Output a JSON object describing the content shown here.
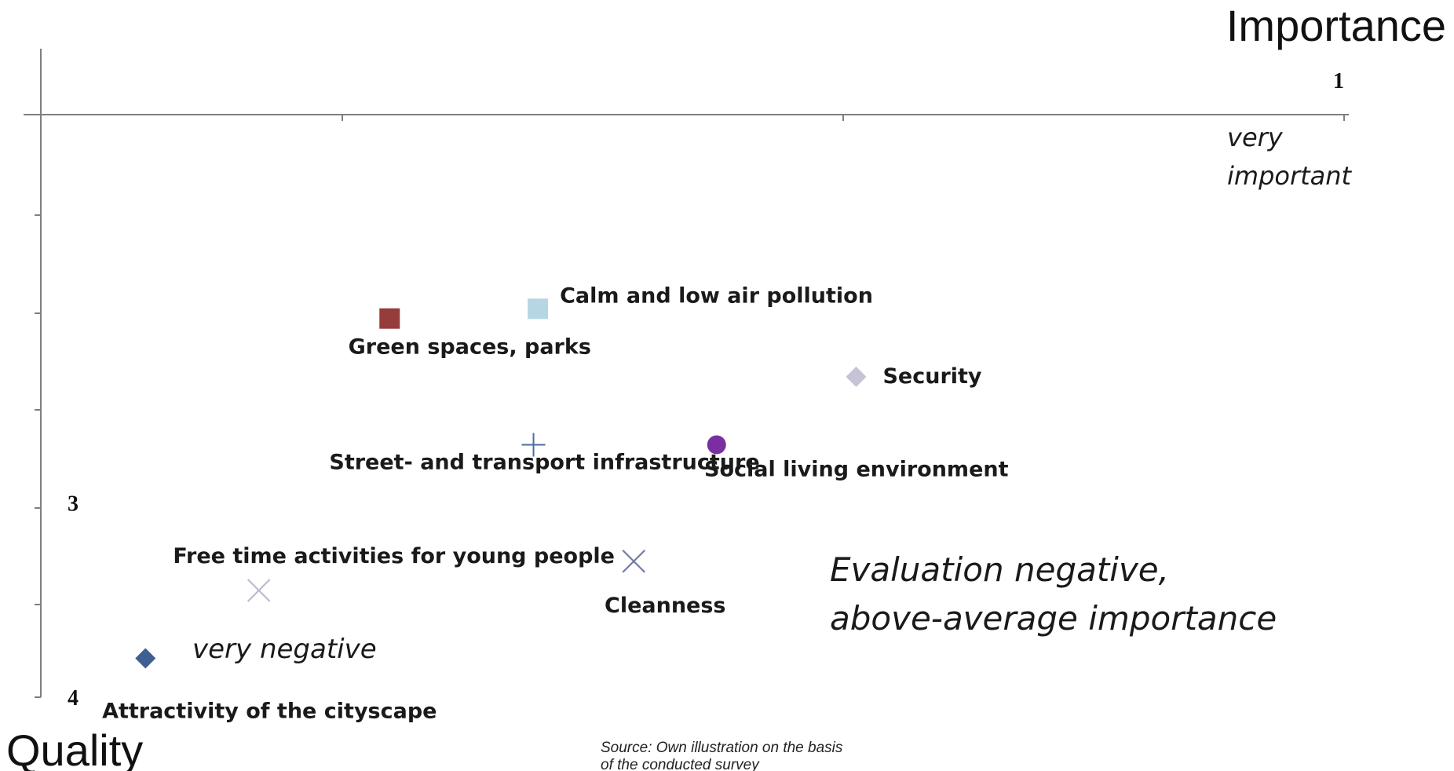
{
  "chart_data": {
    "type": "scatter",
    "title": "",
    "xlabel": "Importance",
    "ylabel": "Quality",
    "xlim": [
      1,
      4
    ],
    "ylim": [
      1,
      4
    ],
    "x_ticks": [
      {
        "value": 1,
        "label": "1"
      }
    ],
    "y_ticks": [
      {
        "value": 3,
        "label": "3"
      },
      {
        "value": 4,
        "label": "4"
      }
    ],
    "axis_note_x": [
      "very",
      "important"
    ],
    "axis_note_y": "very negative",
    "quadrant_note": [
      "Evaluation negative,",
      "above-average importance"
    ],
    "points": [
      {
        "name": "Calm and low air pollution",
        "x": 2.86,
        "y": 2.0,
        "color": "#b7d6e4",
        "marker": "square"
      },
      {
        "name": "Green spaces, parks",
        "x": 3.2,
        "y": 2.05,
        "color": "#963c3a",
        "marker": "square"
      },
      {
        "name": "Security",
        "x": 2.13,
        "y": 2.35,
        "color": "#c7c3d6",
        "marker": "diamond"
      },
      {
        "name": "Street- and transport infrastructure",
        "x": 2.87,
        "y": 2.7,
        "color": "#4b6e9c",
        "marker": "plus"
      },
      {
        "name": "Social living environment",
        "x": 2.45,
        "y": 2.7,
        "color": "#7a2fa0",
        "marker": "circle"
      },
      {
        "name": "Free time activities for young people",
        "x": 3.5,
        "y": 3.45,
        "color": "#b9bdd0",
        "marker": "x"
      },
      {
        "name": "Cleanness",
        "x": 2.64,
        "y": 3.3,
        "color": "#6f7aa8",
        "marker": "x"
      },
      {
        "name": "Attractivity of the cityscape",
        "x": 3.76,
        "y": 3.8,
        "color": "#3e5f90",
        "marker": "diamond"
      }
    ]
  },
  "source_note": [
    "Source: Own illustration on the basis",
    "of the conducted survey"
  ]
}
